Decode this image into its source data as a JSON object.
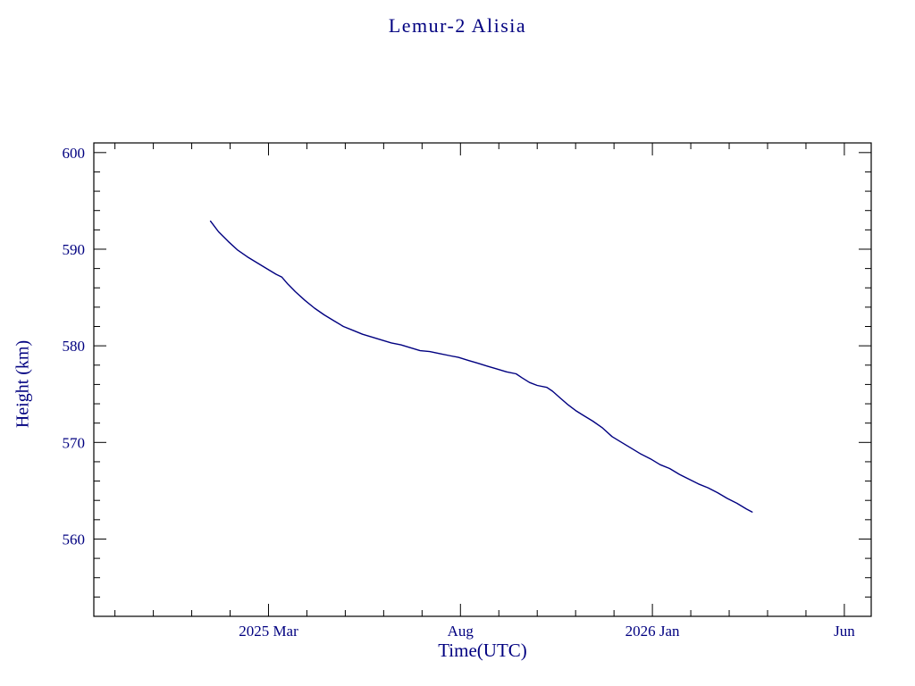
{
  "chart": {
    "title": "Lemur-2 Alisia",
    "xlabel": "Time(UTC)",
    "ylabel": "Height (km)"
  },
  "colors": {
    "text": "#000080",
    "line": "#000080",
    "frame": "#000000"
  },
  "chart_data": {
    "type": "line",
    "title": "Lemur-2 Alisia",
    "xlabel": "Time(UTC)",
    "ylabel": "Height (km)",
    "x_unit": "months since 2025-01-01",
    "xlim": [
      -2.55,
      17.7
    ],
    "ylim": [
      552,
      601
    ],
    "x_ticks": [
      {
        "pos": 2,
        "label": "2025 Mar"
      },
      {
        "pos": 7,
        "label": "Aug"
      },
      {
        "pos": 12,
        "label": "2026 Jan"
      },
      {
        "pos": 17,
        "label": "Jun"
      }
    ],
    "x_minor_step": 1,
    "y_ticks": [
      560,
      570,
      580,
      590,
      600
    ],
    "y_minor_step": 2,
    "grid": false,
    "legend": "none",
    "series": [
      {
        "name": "height_km",
        "points": [
          [
            0.49,
            592.9
          ],
          [
            0.7,
            591.8
          ],
          [
            0.95,
            590.8
          ],
          [
            1.2,
            589.9
          ],
          [
            1.45,
            589.2
          ],
          [
            1.7,
            588.6
          ],
          [
            1.95,
            588.0
          ],
          [
            2.2,
            587.4
          ],
          [
            2.35,
            587.1
          ],
          [
            2.5,
            586.4
          ],
          [
            2.7,
            585.6
          ],
          [
            2.95,
            584.7
          ],
          [
            3.2,
            583.9
          ],
          [
            3.45,
            583.2
          ],
          [
            3.7,
            582.6
          ],
          [
            3.95,
            582.0
          ],
          [
            4.2,
            581.6
          ],
          [
            4.45,
            581.2
          ],
          [
            4.7,
            580.9
          ],
          [
            4.95,
            580.6
          ],
          [
            5.2,
            580.3
          ],
          [
            5.45,
            580.1
          ],
          [
            5.7,
            579.8
          ],
          [
            5.95,
            579.5
          ],
          [
            6.2,
            579.4
          ],
          [
            6.45,
            579.2
          ],
          [
            6.7,
            579.0
          ],
          [
            6.95,
            578.8
          ],
          [
            7.2,
            578.5
          ],
          [
            7.45,
            578.2
          ],
          [
            7.7,
            577.9
          ],
          [
            7.95,
            577.6
          ],
          [
            8.2,
            577.3
          ],
          [
            8.45,
            577.1
          ],
          [
            8.6,
            576.7
          ],
          [
            8.8,
            576.2
          ],
          [
            9.0,
            575.9
          ],
          [
            9.25,
            575.7
          ],
          [
            9.4,
            575.3
          ],
          [
            9.6,
            574.6
          ],
          [
            9.8,
            573.9
          ],
          [
            10.0,
            573.3
          ],
          [
            10.2,
            572.8
          ],
          [
            10.45,
            572.2
          ],
          [
            10.7,
            571.5
          ],
          [
            10.95,
            570.6
          ],
          [
            11.2,
            570.0
          ],
          [
            11.45,
            569.4
          ],
          [
            11.7,
            568.8
          ],
          [
            11.95,
            568.3
          ],
          [
            12.2,
            567.7
          ],
          [
            12.45,
            567.3
          ],
          [
            12.7,
            566.7
          ],
          [
            12.95,
            566.2
          ],
          [
            13.2,
            565.7
          ],
          [
            13.45,
            565.3
          ],
          [
            13.7,
            564.8
          ],
          [
            13.95,
            564.2
          ],
          [
            14.2,
            563.7
          ],
          [
            14.45,
            563.1
          ],
          [
            14.6,
            562.8
          ]
        ]
      }
    ]
  }
}
